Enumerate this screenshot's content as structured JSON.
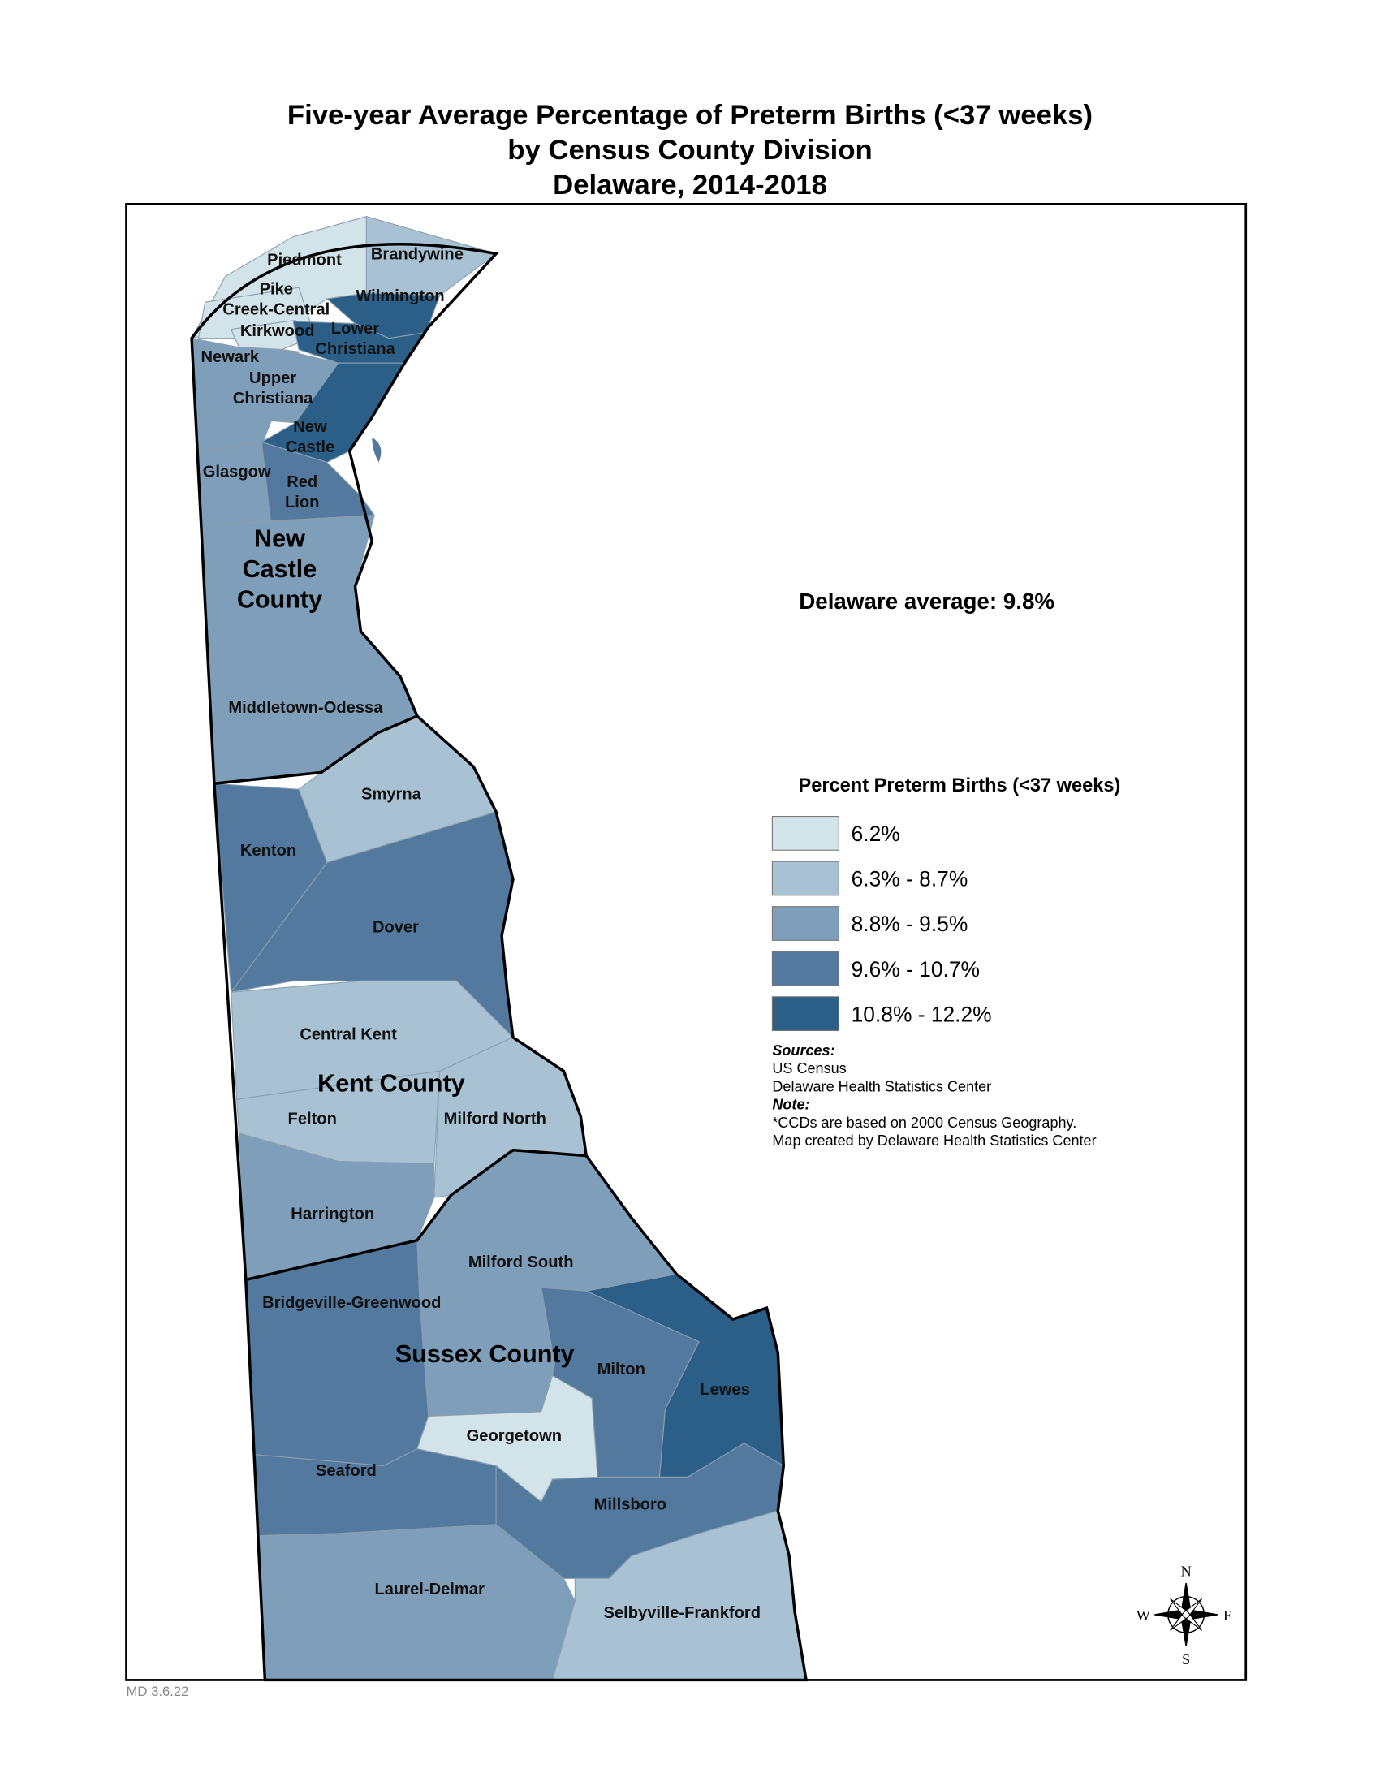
{
  "title_lines": [
    "Five-year Average Percentage of Preterm Births (<37 weeks)",
    "by Census County Division",
    "Delaware, 2014-2018"
  ],
  "average": "Delaware average: 9.8%",
  "legend": {
    "title": "Percent Preterm Births (<37 weeks)",
    "items": [
      {
        "label": "6.2%",
        "color": "#d3e3ea"
      },
      {
        "label": "6.3% - 8.7%",
        "color": "#a8c2d3"
      },
      {
        "label": "8.8% - 9.5%",
        "color": "#7e9eba"
      },
      {
        "label": "9.6% - 10.7%",
        "color": "#53799e"
      },
      {
        "label": "10.8% - 12.2%",
        "color": "#2b5f87"
      }
    ]
  },
  "sources": {
    "heading": "Sources:",
    "lines": [
      "US Census",
      "Delaware Health Statistics Center"
    ]
  },
  "note": {
    "heading": "Note:",
    "lines": [
      "*CCDs are based on 2000 Census Geography.",
      "Map created by Delaware Health Statistics Center"
    ]
  },
  "regions": [
    {
      "label": [
        "Piedmont"
      ],
      "color": "#d3e3ea"
    },
    {
      "label": [
        "Brandywine"
      ],
      "color": "#a8c2d3"
    },
    {
      "label": [
        "Pike",
        "Creek-Central"
      ],
      "color": "#d3e3ea"
    },
    {
      "label": [
        "Wilmington"
      ],
      "color": "#2b5f87"
    },
    {
      "label": [
        "Kirkwood"
      ],
      "color": "#d3e3ea"
    },
    {
      "label": [
        "Lower",
        "Christiana"
      ],
      "color": "#2b5f87"
    },
    {
      "label": [
        "Newark"
      ],
      "color": "#7e9eba"
    },
    {
      "label": [
        "Upper",
        "Christiana"
      ],
      "color": "#7e9eba"
    },
    {
      "label": [
        "New",
        "Castle"
      ],
      "color": "#2b5f87"
    },
    {
      "label": [
        "Glasgow"
      ],
      "color": "#7e9eba"
    },
    {
      "label": [
        "Red",
        "Lion"
      ],
      "color": "#53799e"
    },
    {
      "label": [
        "Middletown-Odessa"
      ],
      "color": "#7e9eba"
    },
    {
      "label": [
        "Smyrna"
      ],
      "color": "#a8c2d3"
    },
    {
      "label": [
        "Kenton"
      ],
      "color": "#53799e"
    },
    {
      "label": [
        "Dover"
      ],
      "color": "#53799e"
    },
    {
      "label": [
        "Central Kent"
      ],
      "color": "#a8c2d3"
    },
    {
      "label": [
        "Felton"
      ],
      "color": "#a8c2d3"
    },
    {
      "label": [
        "Milford North"
      ],
      "color": "#a8c2d3"
    },
    {
      "label": [
        "Harrington"
      ],
      "color": "#7e9eba"
    },
    {
      "label": [
        "Milford South"
      ],
      "color": "#7e9eba"
    },
    {
      "label": [
        "Bridgeville-Greenwood"
      ],
      "color": "#53799e"
    },
    {
      "label": [
        "Milton"
      ],
      "color": "#53799e"
    },
    {
      "label": [
        "Lewes"
      ],
      "color": "#2b5f87"
    },
    {
      "label": [
        "Georgetown"
      ],
      "color": "#d3e3ea"
    },
    {
      "label": [
        "Seaford"
      ],
      "color": "#53799e"
    },
    {
      "label": [
        "Millsboro"
      ],
      "color": "#53799e"
    },
    {
      "label": [
        "Laurel-Delmar"
      ],
      "color": "#7e9eba"
    },
    {
      "label": [
        "Selbyville-Frankford"
      ],
      "color": "#a8c2d3"
    }
  ],
  "counties": [
    {
      "label": [
        "New",
        "Castle",
        "County"
      ]
    },
    {
      "label": [
        "Kent County"
      ]
    },
    {
      "label": [
        "Sussex County"
      ]
    }
  ],
  "compass": {
    "n": "N",
    "e": "E",
    "s": "S",
    "w": "W"
  },
  "footer": "MD 3.6.22"
}
